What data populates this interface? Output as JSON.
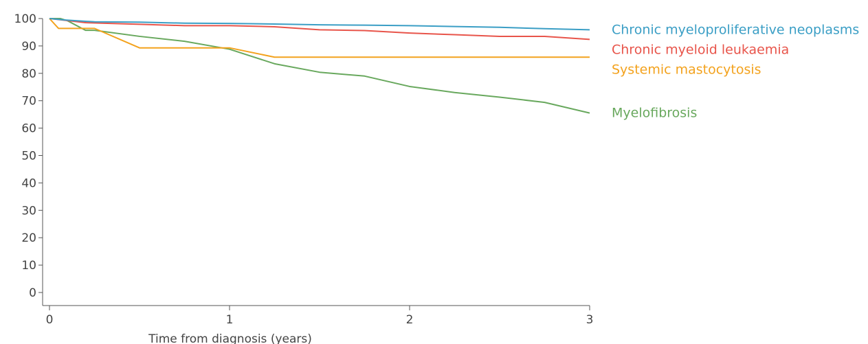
{
  "chart_data": {
    "type": "line",
    "title": "",
    "xlabel": "Time from diagnosis (years)",
    "ylabel": "",
    "xlim": [
      0,
      3
    ],
    "ylim": [
      0,
      100
    ],
    "x_ticks": [
      0,
      1,
      2,
      3
    ],
    "y_ticks": [
      0,
      10,
      20,
      30,
      40,
      50,
      60,
      70,
      80,
      90,
      100
    ],
    "grid": false,
    "legend": "right, inline labels",
    "series": [
      {
        "name": "Chronic myeloproliferative neoplasms",
        "color": "#3a9ec5",
        "points": [
          [
            0,
            100
          ],
          [
            0.08,
            99.5
          ],
          [
            0.25,
            98.8
          ],
          [
            0.5,
            98.7
          ],
          [
            0.75,
            98.3
          ],
          [
            1.0,
            98.2
          ],
          [
            1.25,
            98.0
          ],
          [
            1.5,
            97.7
          ],
          [
            1.75,
            97.6
          ],
          [
            2.0,
            97.4
          ],
          [
            2.25,
            97.1
          ],
          [
            2.5,
            96.8
          ],
          [
            2.75,
            96.3
          ],
          [
            3.0,
            95.9
          ]
        ]
      },
      {
        "name": "Chronic myeloid leukaemia",
        "color": "#e8544a",
        "points": [
          [
            0,
            100
          ],
          [
            0.08,
            99.4
          ],
          [
            0.2,
            98.5
          ],
          [
            0.5,
            97.9
          ],
          [
            0.75,
            97.4
          ],
          [
            1.0,
            97.4
          ],
          [
            1.25,
            97.0
          ],
          [
            1.5,
            95.9
          ],
          [
            1.75,
            95.6
          ],
          [
            2.0,
            94.7
          ],
          [
            2.25,
            94.1
          ],
          [
            2.5,
            93.5
          ],
          [
            2.75,
            93.5
          ],
          [
            3.0,
            92.4
          ]
        ]
      },
      {
        "name": "Systemic mastocytosis",
        "color": "#f3a21d",
        "points": [
          [
            0,
            100
          ],
          [
            0.05,
            96.4
          ],
          [
            0.25,
            96.4
          ],
          [
            0.5,
            89.3
          ],
          [
            1.0,
            89.3
          ],
          [
            1.25,
            85.9
          ],
          [
            3.0,
            85.9
          ]
        ]
      },
      {
        "name": "Myelofibrosis",
        "color": "#68a85d",
        "points": [
          [
            0,
            100
          ],
          [
            0.06,
            100
          ],
          [
            0.1,
            99.2
          ],
          [
            0.2,
            95.7
          ],
          [
            0.25,
            95.7
          ],
          [
            0.5,
            93.5
          ],
          [
            0.75,
            91.7
          ],
          [
            1.0,
            88.8
          ],
          [
            1.25,
            83.5
          ],
          [
            1.5,
            80.4
          ],
          [
            1.75,
            79.0
          ],
          [
            2.0,
            75.2
          ],
          [
            2.25,
            73.0
          ],
          [
            2.5,
            71.3
          ],
          [
            2.75,
            69.4
          ],
          [
            3.0,
            65.5
          ]
        ]
      }
    ]
  }
}
